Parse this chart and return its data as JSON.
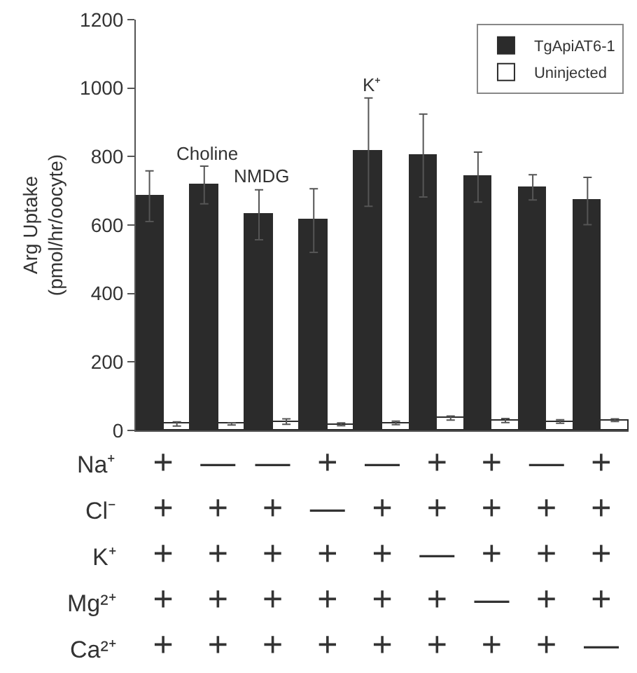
{
  "chart_data": {
    "type": "bar",
    "categories": [
      "+\n+\n+\n+\n+",
      "—\n+\n+\n+\n+",
      "—\n+\n+\n+\n+",
      "+\n—\n+\n+\n+",
      "—\n+\n+\n+\n+",
      "+\n+\n—\n+\n+",
      "+\n+\n+\n—\n+",
      "—\n+\n+\n+\n+",
      "+\n+\n+\n+\n—"
    ],
    "series": [
      {
        "name": "TgApiAT6-1",
        "color": "#2b2b2b",
        "values": [
          684,
          717,
          630,
          613,
          813,
          803,
          740,
          710,
          670
        ],
        "errors": [
          74,
          55,
          73,
          93,
          158,
          121,
          73,
          37,
          69
        ],
        "value_labels": [
          null,
          "Choline",
          "NMDG",
          null,
          "K⁺",
          null,
          null,
          null,
          null
        ]
      },
      {
        "name": "Uninjected",
        "color": "#ffffff",
        "values": [
          19,
          19,
          26,
          18,
          22,
          36,
          29,
          26,
          30
        ],
        "errors": [
          6,
          3,
          8,
          4,
          5,
          6,
          6,
          5,
          4
        ]
      }
    ],
    "ylabel": "Arg Uptake\n(pmol/hr/oocyte)",
    "ylim": [
      0,
      1200
    ],
    "yticks": [
      0,
      200,
      400,
      600,
      800,
      1000,
      1200
    ],
    "annotations": [
      "Na⁺",
      "Cl⁻",
      "K⁺",
      "Mg²⁺",
      "Ca²⁺"
    ],
    "grid": false,
    "legend": "top right"
  }
}
